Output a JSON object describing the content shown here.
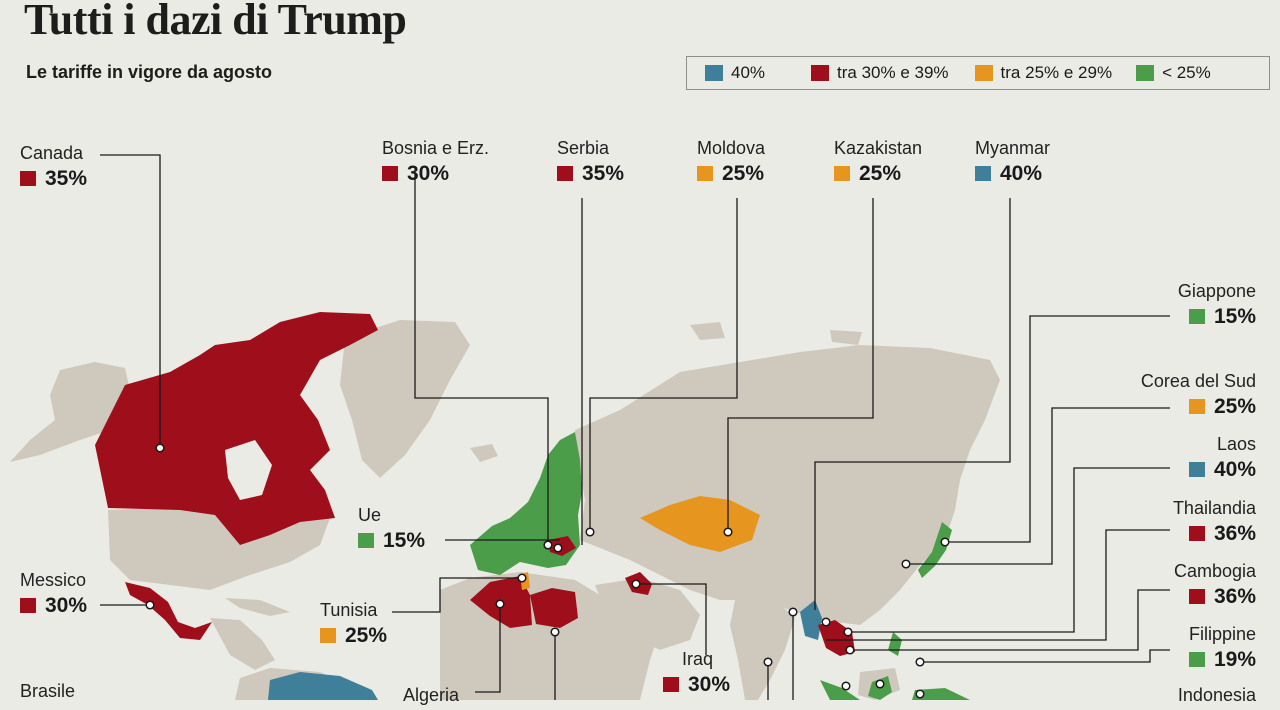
{
  "header": {
    "title": "Tutti i dazi di Trump",
    "subtitle": "Le tariffe in vigore da agosto"
  },
  "legend": [
    {
      "label": "40%",
      "color": "#3f7f9a"
    },
    {
      "label": "tra 30% e 39%",
      "color": "#9e0f1b"
    },
    {
      "label": "tra 25% e 29%",
      "color": "#e6951e"
    },
    {
      "label": "< 25%",
      "color": "#4c9d4a"
    }
  ],
  "countries": [
    {
      "name": "Canada",
      "tariff": "35%",
      "color": "#9e0f1b"
    },
    {
      "name": "Bosnia e Erz.",
      "tariff": "30%",
      "color": "#9e0f1b"
    },
    {
      "name": "Serbia",
      "tariff": "35%",
      "color": "#9e0f1b"
    },
    {
      "name": "Moldova",
      "tariff": "25%",
      "color": "#e6951e"
    },
    {
      "name": "Kazakistan",
      "tariff": "25%",
      "color": "#e6951e"
    },
    {
      "name": "Myanmar",
      "tariff": "40%",
      "color": "#3f7f9a"
    },
    {
      "name": "Giappone",
      "tariff": "15%",
      "color": "#4c9d4a"
    },
    {
      "name": "Corea del Sud",
      "tariff": "25%",
      "color": "#e6951e"
    },
    {
      "name": "Laos",
      "tariff": "40%",
      "color": "#3f7f9a"
    },
    {
      "name": "Thailandia",
      "tariff": "36%",
      "color": "#9e0f1b"
    },
    {
      "name": "Cambogia",
      "tariff": "36%",
      "color": "#9e0f1b"
    },
    {
      "name": "Filippine",
      "tariff": "19%",
      "color": "#4c9d4a"
    },
    {
      "name": "Indonesia",
      "tariff": "",
      "color": "#4c9d4a"
    },
    {
      "name": "Ue",
      "tariff": "15%",
      "color": "#4c9d4a"
    },
    {
      "name": "Messico",
      "tariff": "30%",
      "color": "#9e0f1b"
    },
    {
      "name": "Tunisia",
      "tariff": "25%",
      "color": "#e6951e"
    },
    {
      "name": "Iraq",
      "tariff": "30%",
      "color": "#9e0f1b"
    },
    {
      "name": "Algeria",
      "tariff": "",
      "color": "#9e0f1b"
    },
    {
      "name": "Brasile",
      "tariff": "",
      "color": "#3f7f9a"
    }
  ],
  "colors": {
    "background": "#ebebe6",
    "land": "#cfc8bd",
    "leader": "#1a1a1a"
  }
}
